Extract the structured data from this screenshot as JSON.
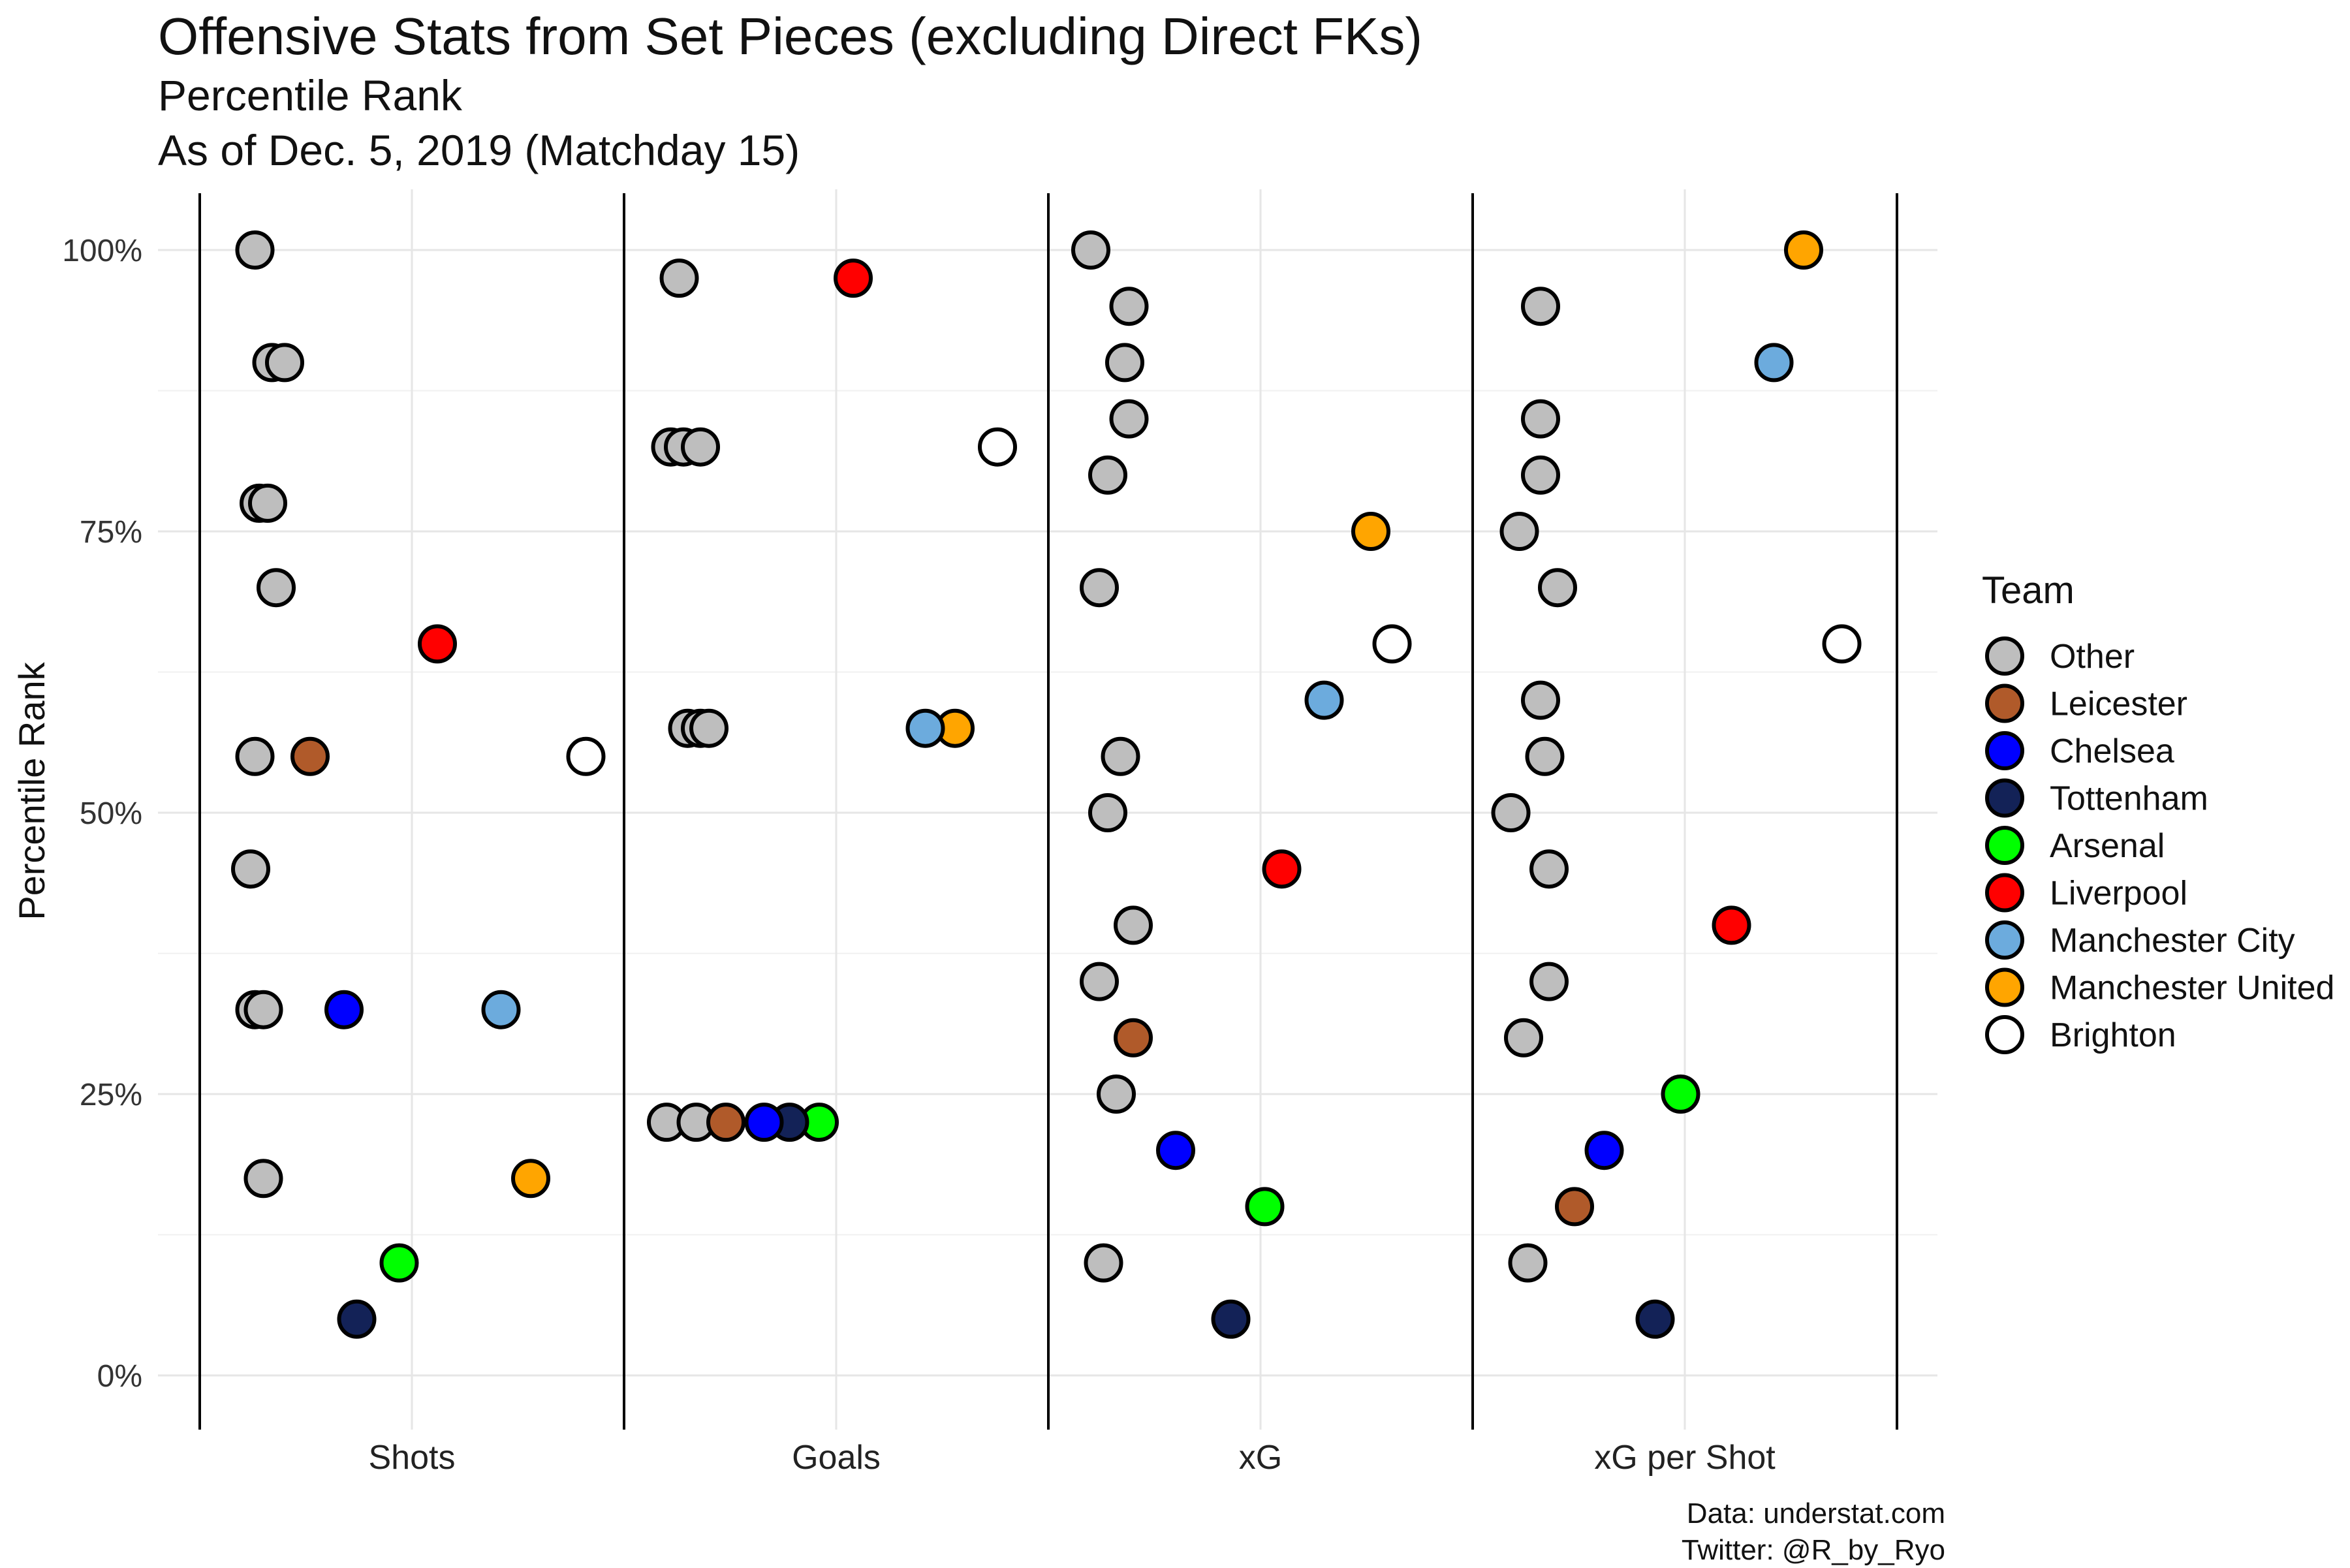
{
  "title": "Offensive Stats from Set Pieces (excluding Direct FKs)",
  "subtitle": "Percentile Rank",
  "subtitle2": "As of Dec. 5, 2019 (Matchday 15)",
  "caption_line1": "Data: understat.com",
  "caption_line2": "Twitter: @R_by_Ryo",
  "chart_data": {
    "type": "scatter",
    "ylabel": "Percentile Rank",
    "xlabel": "",
    "ylim": [
      0,
      100
    ],
    "y_ticks": [
      0,
      25,
      50,
      75,
      100
    ],
    "y_tick_labels": [
      "0%",
      "25%",
      "50%",
      "75%",
      "100%"
    ],
    "categories": [
      "Shots",
      "Goals",
      "xG",
      "xG per Shot"
    ],
    "grid": true,
    "legend": {
      "title": "Team",
      "placement": "right",
      "items": [
        {
          "name": "Other",
          "color": "#bebebe"
        },
        {
          "name": "Leicester",
          "color": "#b05a2a"
        },
        {
          "name": "Chelsea",
          "color": "#0000ff"
        },
        {
          "name": "Tottenham",
          "color": "#132257"
        },
        {
          "name": "Arsenal",
          "color": "#00ff00"
        },
        {
          "name": "Liverpool",
          "color": "#ff0000"
        },
        {
          "name": "Manchester City",
          "color": "#6cabdd"
        },
        {
          "name": "Manchester United",
          "color": "#ffa500"
        },
        {
          "name": "Brighton",
          "color": "#ffffff"
        }
      ]
    },
    "points": [
      {
        "category": "Shots",
        "team": "Other",
        "value": 100,
        "jitter": -0.37
      },
      {
        "category": "Shots",
        "team": "Other",
        "value": 90,
        "jitter": -0.33
      },
      {
        "category": "Shots",
        "team": "Other",
        "value": 90,
        "jitter": -0.3
      },
      {
        "category": "Shots",
        "team": "Other",
        "value": 77.5,
        "jitter": -0.36
      },
      {
        "category": "Shots",
        "team": "Other",
        "value": 77.5,
        "jitter": -0.34
      },
      {
        "category": "Shots",
        "team": "Other",
        "value": 70,
        "jitter": -0.32
      },
      {
        "category": "Shots",
        "team": "Liverpool",
        "value": 65,
        "jitter": 0.06
      },
      {
        "category": "Shots",
        "team": "Other",
        "value": 55,
        "jitter": -0.37
      },
      {
        "category": "Shots",
        "team": "Leicester",
        "value": 55,
        "jitter": -0.24
      },
      {
        "category": "Shots",
        "team": "Brighton",
        "value": 55,
        "jitter": 0.41
      },
      {
        "category": "Shots",
        "team": "Other",
        "value": 45,
        "jitter": -0.38
      },
      {
        "category": "Shots",
        "team": "Other",
        "value": 32.5,
        "jitter": -0.37
      },
      {
        "category": "Shots",
        "team": "Other",
        "value": 32.5,
        "jitter": -0.35
      },
      {
        "category": "Shots",
        "team": "Chelsea",
        "value": 32.5,
        "jitter": -0.16
      },
      {
        "category": "Shots",
        "team": "Manchester City",
        "value": 32.5,
        "jitter": 0.21
      },
      {
        "category": "Shots",
        "team": "Other",
        "value": 17.5,
        "jitter": -0.35
      },
      {
        "category": "Shots",
        "team": "Manchester United",
        "value": 17.5,
        "jitter": 0.28
      },
      {
        "category": "Shots",
        "team": "Arsenal",
        "value": 10,
        "jitter": -0.03
      },
      {
        "category": "Shots",
        "team": "Tottenham",
        "value": 5,
        "jitter": -0.13
      },
      {
        "category": "Goals",
        "team": "Other",
        "value": 97.5,
        "jitter": -0.37
      },
      {
        "category": "Goals",
        "team": "Liverpool",
        "value": 97.5,
        "jitter": 0.04
      },
      {
        "category": "Goals",
        "team": "Other",
        "value": 82.5,
        "jitter": -0.39
      },
      {
        "category": "Goals",
        "team": "Other",
        "value": 82.5,
        "jitter": -0.36
      },
      {
        "category": "Goals",
        "team": "Other",
        "value": 82.5,
        "jitter": -0.32
      },
      {
        "category": "Goals",
        "team": "Brighton",
        "value": 82.5,
        "jitter": 0.38
      },
      {
        "category": "Goals",
        "team": "Other",
        "value": 57.5,
        "jitter": -0.35
      },
      {
        "category": "Goals",
        "team": "Other",
        "value": 57.5,
        "jitter": -0.32
      },
      {
        "category": "Goals",
        "team": "Other",
        "value": 57.5,
        "jitter": -0.3
      },
      {
        "category": "Goals",
        "team": "Manchester United",
        "value": 57.5,
        "jitter": 0.28
      },
      {
        "category": "Goals",
        "team": "Manchester City",
        "value": 57.5,
        "jitter": 0.21
      },
      {
        "category": "Goals",
        "team": "Other",
        "value": 22.5,
        "jitter": -0.4
      },
      {
        "category": "Goals",
        "team": "Other",
        "value": 22.5,
        "jitter": -0.33
      },
      {
        "category": "Goals",
        "team": "Leicester",
        "value": 22.5,
        "jitter": -0.26
      },
      {
        "category": "Goals",
        "team": "Arsenal",
        "value": 22.5,
        "jitter": -0.04
      },
      {
        "category": "Goals",
        "team": "Tottenham",
        "value": 22.5,
        "jitter": -0.11
      },
      {
        "category": "Goals",
        "team": "Chelsea",
        "value": 22.5,
        "jitter": -0.17
      },
      {
        "category": "xG",
        "team": "Other",
        "value": 100,
        "jitter": -0.4
      },
      {
        "category": "xG",
        "team": "Other",
        "value": 95,
        "jitter": -0.31
      },
      {
        "category": "xG",
        "team": "Other",
        "value": 90,
        "jitter": -0.32
      },
      {
        "category": "xG",
        "team": "Other",
        "value": 85,
        "jitter": -0.31
      },
      {
        "category": "xG",
        "team": "Other",
        "value": 80,
        "jitter": -0.36
      },
      {
        "category": "xG",
        "team": "Manchester United",
        "value": 75,
        "jitter": 0.26
      },
      {
        "category": "xG",
        "team": "Other",
        "value": 70,
        "jitter": -0.38
      },
      {
        "category": "xG",
        "team": "Brighton",
        "value": 65,
        "jitter": 0.31
      },
      {
        "category": "xG",
        "team": "Manchester City",
        "value": 60,
        "jitter": 0.15
      },
      {
        "category": "xG",
        "team": "Other",
        "value": 55,
        "jitter": -0.33
      },
      {
        "category": "xG",
        "team": "Other",
        "value": 50,
        "jitter": -0.36
      },
      {
        "category": "xG",
        "team": "Liverpool",
        "value": 45,
        "jitter": 0.05
      },
      {
        "category": "xG",
        "team": "Other",
        "value": 40,
        "jitter": -0.3
      },
      {
        "category": "xG",
        "team": "Other",
        "value": 35,
        "jitter": -0.38
      },
      {
        "category": "xG",
        "team": "Leicester",
        "value": 30,
        "jitter": -0.3
      },
      {
        "category": "xG",
        "team": "Other",
        "value": 25,
        "jitter": -0.34
      },
      {
        "category": "xG",
        "team": "Chelsea",
        "value": 20,
        "jitter": -0.2
      },
      {
        "category": "xG",
        "team": "Arsenal",
        "value": 15,
        "jitter": 0.01
      },
      {
        "category": "xG",
        "team": "Other",
        "value": 10,
        "jitter": -0.37
      },
      {
        "category": "xG",
        "team": "Tottenham",
        "value": 5,
        "jitter": -0.07
      },
      {
        "category": "xG per Shot",
        "team": "Manchester United",
        "value": 100,
        "jitter": 0.28
      },
      {
        "category": "xG per Shot",
        "team": "Other",
        "value": 95,
        "jitter": -0.34
      },
      {
        "category": "xG per Shot",
        "team": "Manchester City",
        "value": 90,
        "jitter": 0.21
      },
      {
        "category": "xG per Shot",
        "team": "Other",
        "value": 85,
        "jitter": -0.34
      },
      {
        "category": "xG per Shot",
        "team": "Other",
        "value": 80,
        "jitter": -0.34
      },
      {
        "category": "xG per Shot",
        "team": "Other",
        "value": 75,
        "jitter": -0.39
      },
      {
        "category": "xG per Shot",
        "team": "Other",
        "value": 70,
        "jitter": -0.3
      },
      {
        "category": "xG per Shot",
        "team": "Brighton",
        "value": 65,
        "jitter": 0.37
      },
      {
        "category": "xG per Shot",
        "team": "Other",
        "value": 60,
        "jitter": -0.34
      },
      {
        "category": "xG per Shot",
        "team": "Other",
        "value": 55,
        "jitter": -0.33
      },
      {
        "category": "xG per Shot",
        "team": "Other",
        "value": 50,
        "jitter": -0.41
      },
      {
        "category": "xG per Shot",
        "team": "Other",
        "value": 45,
        "jitter": -0.32
      },
      {
        "category": "xG per Shot",
        "team": "Liverpool",
        "value": 40,
        "jitter": 0.11
      },
      {
        "category": "xG per Shot",
        "team": "Other",
        "value": 35,
        "jitter": -0.32
      },
      {
        "category": "xG per Shot",
        "team": "Other",
        "value": 30,
        "jitter": -0.38
      },
      {
        "category": "xG per Shot",
        "team": "Arsenal",
        "value": 25,
        "jitter": -0.01
      },
      {
        "category": "xG per Shot",
        "team": "Chelsea",
        "value": 20,
        "jitter": -0.19
      },
      {
        "category": "xG per Shot",
        "team": "Leicester",
        "value": 15,
        "jitter": -0.26
      },
      {
        "category": "xG per Shot",
        "team": "Other",
        "value": 10,
        "jitter": -0.37
      },
      {
        "category": "xG per Shot",
        "team": "Tottenham",
        "value": 5,
        "jitter": -0.07
      }
    ]
  }
}
